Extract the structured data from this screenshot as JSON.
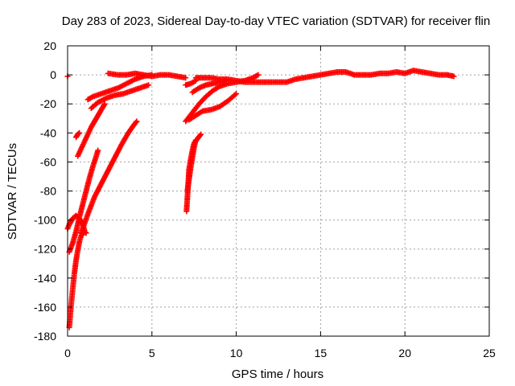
{
  "chart_data": {
    "type": "scatter",
    "title": "Day 283 of 2023, Sidereal Day-to-day VTEC variation (SDTVAR) for receiver flin",
    "xlabel": "GPS time / hours",
    "ylabel": "SDTVAR / TECUs",
    "xlim": [
      0,
      25
    ],
    "ylim": [
      -180,
      20
    ],
    "xticks": [
      0,
      5,
      10,
      15,
      20,
      25
    ],
    "yticks": [
      20,
      0,
      -20,
      -40,
      -60,
      -80,
      -100,
      -120,
      -140,
      -160,
      -180
    ],
    "grid": true,
    "marker": "plus",
    "color": "#ff0000",
    "series": [
      {
        "x": [
          2.4,
          3.0,
          3.5,
          4.0,
          4.5,
          5.0,
          5.5,
          6.0,
          6.5,
          7.0
        ],
        "y": [
          1,
          0,
          0,
          1,
          0,
          -1,
          0,
          0,
          -1,
          -2
        ]
      },
      {
        "x": [
          7.6,
          8.0,
          8.5,
          9.0,
          9.5,
          10.0,
          10.5,
          11.0,
          11.5,
          12.0,
          12.5,
          13.0,
          13.5,
          14.0,
          14.5,
          15.0,
          15.5,
          16.0,
          16.5,
          17.0,
          17.5,
          18.0,
          18.5,
          19.0,
          19.5,
          20.0,
          20.5,
          21.0,
          21.5,
          22.0,
          22.5,
          22.9
        ],
        "y": [
          -2,
          -2,
          -2,
          -3,
          -3,
          -4,
          -5,
          -5,
          -5,
          -5,
          -5,
          -5,
          -3,
          -2,
          -1,
          0,
          1,
          2,
          2,
          0,
          0,
          0,
          1,
          1,
          2,
          1,
          3,
          2,
          1,
          0,
          0,
          -1
        ]
      },
      {
        "x": [
          1.2,
          1.5,
          2.0,
          2.5,
          3.0,
          3.5,
          4.0,
          4.5,
          5.0
        ],
        "y": [
          -17,
          -15,
          -13,
          -11,
          -9,
          -6,
          -3,
          -1,
          0
        ]
      },
      {
        "x": [
          1.4,
          1.8,
          2.3,
          2.8,
          3.3,
          3.8,
          4.3,
          4.8
        ],
        "y": [
          -23,
          -19,
          -16,
          -14,
          -13,
          -11,
          -9,
          -7
        ]
      },
      {
        "x": [
          0.6,
          0.8,
          1.0,
          1.2,
          1.4,
          1.6,
          1.8,
          2.0,
          2.2
        ],
        "y": [
          -56,
          -51,
          -46,
          -41,
          -36,
          -32,
          -28,
          -24,
          -20
        ]
      },
      {
        "x": [
          0.5,
          0.6,
          0.7
        ],
        "y": [
          -43,
          -41,
          -40
        ]
      },
      {
        "x": [
          0.1,
          0.3,
          0.5,
          0.7,
          0.9,
          1.1,
          1.3,
          1.5,
          1.7,
          1.8
        ],
        "y": [
          -122,
          -116,
          -108,
          -98,
          -89,
          -80,
          -71,
          -63,
          -56,
          -52
        ]
      },
      {
        "x": [
          0.8,
          1.2,
          1.6,
          2.0,
          2.4,
          2.8,
          3.2,
          3.6,
          3.9,
          4.1
        ],
        "y": [
          -109,
          -96,
          -84,
          -75,
          -66,
          -57,
          -48,
          -40,
          -35,
          -32
        ]
      },
      {
        "x": [
          0.0,
          0.1,
          0.2,
          0.3,
          0.4,
          0.5,
          0.6,
          0.7,
          0.8,
          0.9,
          1.0
        ],
        "y": [
          -106,
          -103,
          -101,
          -99,
          -98,
          -97,
          -98,
          -99,
          -101,
          -103,
          -107
        ]
      },
      {
        "x": [
          0.1,
          0.2,
          0.3,
          0.4,
          0.5,
          0.6,
          0.7,
          0.8,
          0.9,
          1.0,
          1.1
        ],
        "y": [
          -174,
          -160,
          -148,
          -137,
          -128,
          -121,
          -115,
          -111,
          -109,
          -108,
          -109
        ]
      },
      {
        "x": [
          7.05,
          7.1,
          7.15,
          7.2,
          7.3,
          7.4,
          7.5,
          7.7,
          7.9
        ],
        "y": [
          -94,
          -85,
          -75,
          -65,
          -58,
          -52,
          -47,
          -44,
          -41
        ]
      },
      {
        "x": [
          7.1,
          7.2,
          7.3,
          7.4,
          7.5,
          7.6
        ],
        "y": [
          -80,
          -72,
          -64,
          -57,
          -50,
          -45
        ]
      },
      {
        "x": [
          7.2,
          7.6,
          8.0,
          8.5,
          9.0,
          9.5,
          10.0
        ],
        "y": [
          -31,
          -28,
          -25,
          -24,
          -22,
          -18,
          -13
        ]
      },
      {
        "x": [
          7.0,
          7.4,
          7.8,
          8.2,
          8.6,
          9.0,
          9.5,
          10.0,
          10.5,
          11.0,
          11.3
        ],
        "y": [
          -32,
          -26,
          -20,
          -15,
          -11,
          -8,
          -6,
          -5,
          -4,
          -2,
          0
        ]
      },
      {
        "x": [
          7.4,
          7.8,
          8.2,
          8.6,
          9.0,
          9.4
        ],
        "y": [
          -12,
          -9,
          -7,
          -6,
          -5,
          -4
        ]
      },
      {
        "x": [
          7.0,
          7.3,
          7.6
        ],
        "y": [
          -7,
          -6,
          -4
        ]
      },
      {
        "x": [
          0.0
        ],
        "y": [
          -1
        ]
      }
    ]
  }
}
